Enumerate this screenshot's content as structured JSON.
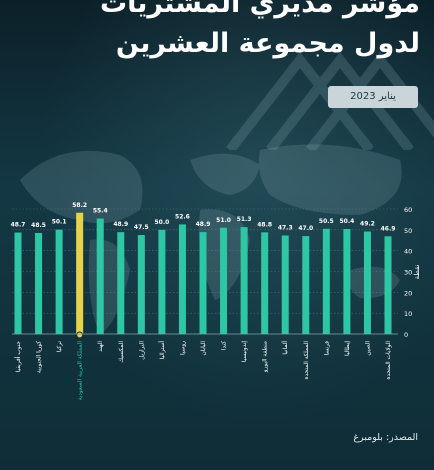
{
  "title_line1": "مؤشر مديري المشتريات",
  "title_line2": "لدول مجموعة العشرين",
  "date": "يناير 2023",
  "source": "المصدر: بلومبرغ",
  "colors": {
    "bar": "#2ec7a6",
    "highlight": "#e6d34a",
    "text": "#ffffff"
  },
  "chart_data": {
    "type": "bar",
    "categories": [
      "الولايات المتحدة",
      "الصين",
      "إيطاليا",
      "فرنسا",
      "المملكة المتحدة",
      "ألمانيا",
      "منطقة اليورو",
      "إندونيسيا",
      "كندا",
      "اليابان",
      "روسيا",
      "أستراليا",
      "البرازيل",
      "المكسيك",
      "الهند",
      "المملكة العربية السعودية",
      "تركيا",
      "كوريا الجنوبية",
      "جنوب أفريقيا"
    ],
    "values": [
      46.9,
      49.2,
      50.4,
      50.5,
      47.0,
      47.3,
      48.8,
      51.3,
      51.0,
      48.9,
      52.6,
      50.0,
      47.5,
      48.9,
      55.4,
      58.2,
      50.1,
      48.5,
      48.7
    ],
    "highlight": "المملكة العربية السعودية",
    "ylabel": "نقطة",
    "yticks": [
      0,
      10,
      20,
      30,
      40,
      50,
      60
    ],
    "ylim": [
      0,
      60
    ],
    "grid": true
  }
}
